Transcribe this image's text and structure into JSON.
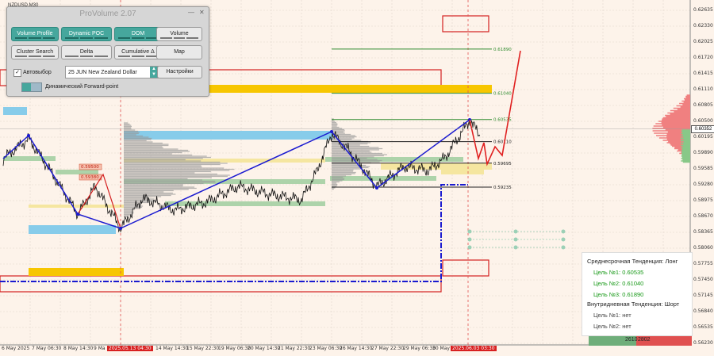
{
  "symbol": "NZDUSD,M30",
  "panel": {
    "title": "ProVolume 2.07",
    "buttons": {
      "volume_profile": "Volume Profile",
      "dynamic_poc": "Dynamic POC",
      "dom": "DOM",
      "volume": "Volume",
      "cluster_search": "Cluster Search",
      "delta": "Delta",
      "cumulative_delta": "Cumulative Δ",
      "map": "Map",
      "settings": "Настройки"
    },
    "auto_select_label": "Автовыбор",
    "auto_select_checked": true,
    "instrument": "25 JUN New Zealand Dollar",
    "forward_label": "Динамический Forward-point"
  },
  "price_axis": [
    "0.62635",
    "0.62330",
    "0.62025",
    "0.61720",
    "0.61415",
    "0.61110",
    "0.60805",
    "0.60500",
    "0.60195",
    "0.59890",
    "0.59585",
    "0.59280",
    "0.58975",
    "0.58670",
    "0.58365",
    "0.58060",
    "0.57755",
    "0.57450",
    "0.57145",
    "0.56840",
    "0.56535",
    "0.56230"
  ],
  "current_price": "0.60352",
  "levels": [
    {
      "label": "0.61890",
      "price": 0.6189,
      "color": "#2e8b2e"
    },
    {
      "label": "0.61040",
      "price": 0.6104,
      "color": "#2e8b2e"
    },
    {
      "label": "0.60535",
      "price": 0.60535,
      "color": "#2e8b2e"
    },
    {
      "label": "0.60110",
      "price": 0.6011,
      "color": "#222222"
    },
    {
      "label": "0.59695",
      "price": 0.59695,
      "color": "#222222"
    },
    {
      "label": "0.59235",
      "price": 0.59235,
      "color": "#222222"
    }
  ],
  "inner_labels": [
    "0.59500",
    "0.59380"
  ],
  "time_axis": [
    {
      "label": "6 May 2025",
      "hl": false
    },
    {
      "label": "7 May 06:30",
      "hl": false
    },
    {
      "label": "8 May 14:30",
      "hl": false
    },
    {
      "label": "9 Ma",
      "hl": false
    },
    {
      "label": "2025.05.13 04:30",
      "hl": true
    },
    {
      "label": "14 May 14:30",
      "hl": false
    },
    {
      "label": "15 May 22:30",
      "hl": false
    },
    {
      "label": "19 May 06:30",
      "hl": false
    },
    {
      "label": "20 May 14:30",
      "hl": false
    },
    {
      "label": "21 May 22:30",
      "hl": false
    },
    {
      "label": "23 May 06:30",
      "hl": false
    },
    {
      "label": "26 May 14:30",
      "hl": false
    },
    {
      "label": "27 May 22:30",
      "hl": false
    },
    {
      "label": "29 May 06:30",
      "hl": false
    },
    {
      "label": "30 May",
      "hl": false
    },
    {
      "label": "2025.06.03 03:30",
      "hl": true
    }
  ],
  "trend": {
    "mid_title": "Среднесрочная Тенденция: Лонг",
    "mid_targets": [
      "Цель №1: 0.60535",
      "Цель №2: 0.61040",
      "Цель №3: 0.61890"
    ],
    "intra_title": "Внутридневная Тенденция: Шорт",
    "intra_targets": [
      "Цель №1: нет",
      "Цель №2: нет"
    ]
  },
  "delta_bar": {
    "left": "2610",
    "right": "2802"
  },
  "colors": {
    "background": "#fdf3ea",
    "price_line": "#111111",
    "zigzag": "#1a1ad0",
    "forecast": "#e02020",
    "profile": "#999999",
    "pos_volume": "#f08080",
    "neg_volume": "#88c888"
  }
}
